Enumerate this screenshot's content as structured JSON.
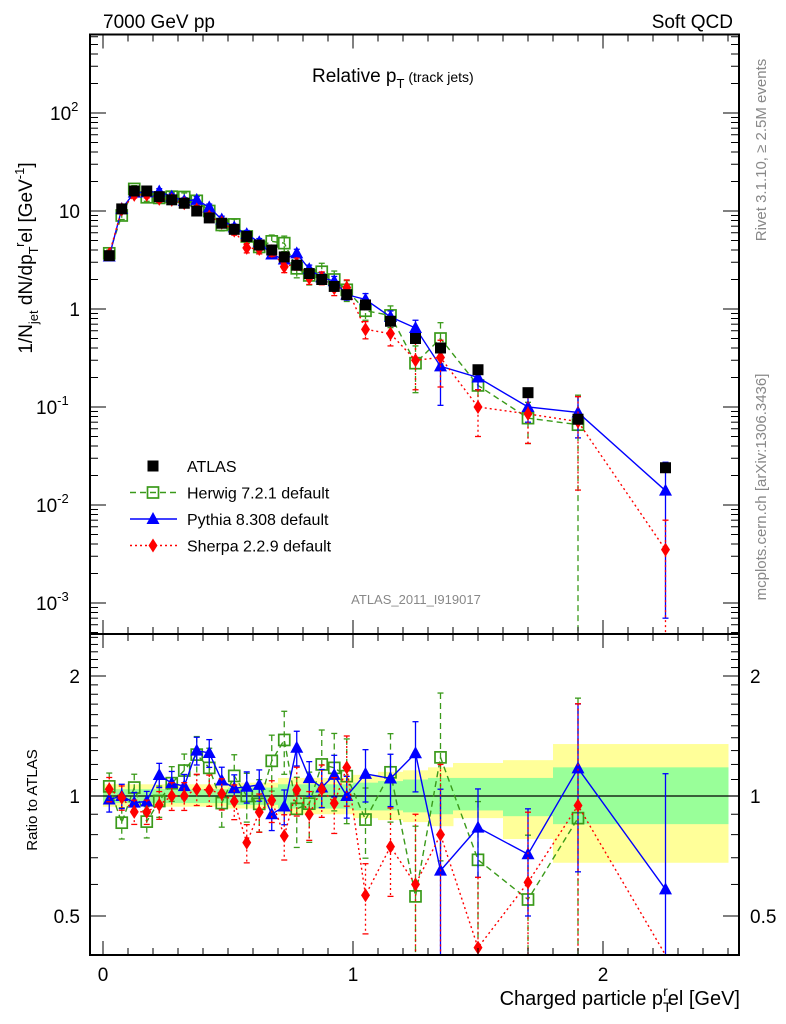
{
  "header": {
    "left": "7000 GeV pp",
    "right": "Soft QCD"
  },
  "side_text": {
    "rivet": "Rivet 3.1.10, ≥ 2.5M events",
    "mcplots": "mcplots.cern.ch [arXiv:1306.3436]"
  },
  "watermark": "ATLAS_2011_I919017",
  "colors": {
    "atlas": "#000000",
    "herwig": "#3a9a1a",
    "pythia": "#0000ff",
    "sherpa": "#ff0000",
    "band_total": "#ffff99",
    "band_stat": "#99ff99"
  },
  "chart_data": [
    {
      "type": "scatter",
      "title": {
        "main": "Relative p",
        "sub": "T",
        "small": " (track jets)"
      },
      "ylabel": {
        "a": "1/N",
        "a_sub": "jet",
        "b": " dN/dp",
        "b_sub": "T",
        "b_sup": "r",
        "c": "el [GeV",
        "c_sup": "-1",
        "d": "]"
      },
      "yscale": "log",
      "ylim": [
        0.00046,
        690
      ],
      "xlim": [
        -0.052,
        2.544
      ],
      "y_ticks": [
        {
          "value": 0.001,
          "base": "10",
          "exp": "-3"
        },
        {
          "value": 0.01,
          "base": "10",
          "exp": "-2"
        },
        {
          "value": 0.1,
          "base": "10",
          "exp": "-1"
        },
        {
          "value": 1,
          "base": "1",
          "exp": ""
        },
        {
          "value": 10,
          "base": "10",
          "exp": ""
        },
        {
          "value": 100,
          "base": "10",
          "exp": "2"
        }
      ],
      "legend_position": "lower-left",
      "bin_edges": [
        0,
        0.05,
        0.1,
        0.15,
        0.2,
        0.25,
        0.3,
        0.35,
        0.4,
        0.45,
        0.5,
        0.55,
        0.6,
        0.65,
        0.7,
        0.75,
        0.8,
        0.85,
        0.9,
        0.95,
        1.0,
        1.1,
        1.2,
        1.3,
        1.4,
        1.6,
        1.8,
        2.0,
        2.5
      ],
      "x": [
        0.025,
        0.075,
        0.125,
        0.175,
        0.225,
        0.275,
        0.325,
        0.375,
        0.425,
        0.475,
        0.525,
        0.575,
        0.625,
        0.675,
        0.725,
        0.775,
        0.825,
        0.875,
        0.925,
        0.975,
        1.05,
        1.15,
        1.25,
        1.35,
        1.5,
        1.7,
        1.9,
        2.25
      ],
      "series": [
        {
          "key": "atlas",
          "name": "ATLAS",
          "marker": "filled-square",
          "line": "none",
          "values": [
            3.5,
            10.5,
            16,
            16,
            14,
            13,
            12,
            10,
            8.5,
            7.5,
            6.5,
            5.5,
            4.5,
            4.0,
            3.4,
            2.8,
            2.3,
            2.0,
            1.7,
            1.4,
            1.1,
            0.75,
            0.5,
            0.4,
            0.24,
            0.14,
            0.075,
            0.024
          ]
        },
        {
          "key": "herwig",
          "name": "Herwig 7.2.1 default",
          "marker": "open-square",
          "line": "dashed",
          "values": [
            3.7,
            9.0,
            16.8,
            13.8,
            13.6,
            14.0,
            13.9,
            12.7,
            10.0,
            7.2,
            7.3,
            5.5,
            4.3,
            4.9,
            4.7,
            2.6,
            2.2,
            2.4,
            2.0,
            1.57,
            0.96,
            0.86,
            0.28,
            0.5,
            0.166,
            0.077,
            0.066,
            null
          ],
          "rel_err": [
            0.08,
            0.09,
            0.08,
            0.09,
            0.09,
            0.1,
            0.1,
            0.11,
            0.12,
            0.13,
            0.13,
            0.14,
            0.15,
            0.16,
            0.18,
            0.2,
            0.2,
            0.22,
            0.22,
            0.24,
            0.2,
            0.25,
            0.5,
            0.45,
            0.4,
            0.45,
            1.0,
            null
          ]
        },
        {
          "key": "pythia",
          "name": "Pythia 8.308 default",
          "marker": "triangle",
          "line": "solid",
          "values": [
            3.43,
            10.5,
            15.4,
            15.5,
            15.8,
            14.0,
            12.7,
            13.0,
            10.9,
            8.2,
            6.8,
            5.8,
            4.8,
            3.6,
            3.2,
            3.7,
            2.55,
            2.1,
            1.92,
            1.4,
            1.25,
            0.83,
            0.64,
            0.26,
            0.2,
            0.1,
            0.088,
            0.014
          ],
          "rel_err": [
            0.07,
            0.07,
            0.06,
            0.06,
            0.07,
            0.07,
            0.07,
            0.08,
            0.08,
            0.08,
            0.08,
            0.09,
            0.09,
            0.09,
            0.1,
            0.1,
            0.1,
            0.11,
            0.12,
            0.12,
            0.15,
            0.15,
            0.2,
            0.6,
            0.25,
            0.3,
            0.45,
            0.95
          ]
        },
        {
          "key": "sherpa",
          "name": "Sherpa 2.2.9 default",
          "marker": "diamond",
          "line": "dotted",
          "values": [
            3.64,
            10.4,
            14.6,
            14.6,
            13.3,
            13.0,
            12.0,
            10.4,
            8.8,
            7.6,
            6.3,
            4.2,
            4.1,
            3.9,
            2.7,
            2.9,
            2.07,
            2.08,
            1.63,
            1.65,
            0.62,
            0.56,
            0.3,
            0.32,
            0.1,
            0.085,
            0.071,
            0.0035
          ],
          "rel_err": [
            0.07,
            0.07,
            0.07,
            0.07,
            0.08,
            0.08,
            0.08,
            0.09,
            0.09,
            0.09,
            0.1,
            0.11,
            0.11,
            0.12,
            0.13,
            0.14,
            0.14,
            0.15,
            0.16,
            0.2,
            0.2,
            0.25,
            0.5,
            0.5,
            0.5,
            0.5,
            0.8,
            1.0
          ]
        }
      ]
    },
    {
      "type": "scatter",
      "ylabel": "Ratio to ATLAS",
      "xlabel": {
        "a": "Charged particle p",
        "sub": "T",
        "sup": "r",
        "b": "el [GeV]"
      },
      "yscale": "log",
      "ylim": [
        0.4,
        2.55
      ],
      "x_ticks": [
        {
          "value": 0,
          "label": "0"
        },
        {
          "value": 1,
          "label": "1"
        },
        {
          "value": 2,
          "label": "2"
        }
      ],
      "y_ticks": [
        {
          "value": 0.5,
          "label": "0.5"
        },
        {
          "value": 1,
          "label": "1"
        },
        {
          "value": 2,
          "label": "2"
        }
      ],
      "reference": 1,
      "band_stat": [
        [
          0.96,
          1.04
        ],
        [
          0.96,
          1.04
        ],
        [
          0.96,
          1.04
        ],
        [
          0.96,
          1.04
        ],
        [
          0.96,
          1.04
        ],
        [
          0.96,
          1.04
        ],
        [
          0.96,
          1.04
        ],
        [
          0.96,
          1.04
        ],
        [
          0.96,
          1.04
        ],
        [
          0.96,
          1.04
        ],
        [
          0.95,
          1.05
        ],
        [
          0.95,
          1.05
        ],
        [
          0.95,
          1.05
        ],
        [
          0.95,
          1.05
        ],
        [
          0.93,
          1.07
        ],
        [
          0.93,
          1.07
        ],
        [
          0.93,
          1.07
        ],
        [
          0.93,
          1.07
        ],
        [
          0.93,
          1.07
        ],
        [
          0.93,
          1.07
        ],
        [
          0.92,
          1.08
        ],
        [
          0.92,
          1.09
        ],
        [
          0.91,
          1.1
        ],
        [
          0.9,
          1.11
        ],
        [
          0.92,
          1.11
        ],
        [
          0.89,
          1.11
        ],
        [
          0.85,
          1.18
        ],
        [
          0.85,
          1.18
        ]
      ],
      "band_total": [
        [
          0.94,
          1.07
        ],
        [
          0.94,
          1.07
        ],
        [
          0.94,
          1.07
        ],
        [
          0.94,
          1.07
        ],
        [
          0.94,
          1.07
        ],
        [
          0.94,
          1.07
        ],
        [
          0.94,
          1.07
        ],
        [
          0.94,
          1.07
        ],
        [
          0.94,
          1.07
        ],
        [
          0.94,
          1.07
        ],
        [
          0.93,
          1.08
        ],
        [
          0.93,
          1.08
        ],
        [
          0.93,
          1.08
        ],
        [
          0.93,
          1.08
        ],
        [
          0.9,
          1.11
        ],
        [
          0.9,
          1.11
        ],
        [
          0.9,
          1.11
        ],
        [
          0.9,
          1.11
        ],
        [
          0.9,
          1.11
        ],
        [
          0.9,
          1.11
        ],
        [
          0.88,
          1.13
        ],
        [
          0.87,
          1.15
        ],
        [
          0.86,
          1.16
        ],
        [
          0.84,
          1.18
        ],
        [
          0.88,
          1.21
        ],
        [
          0.78,
          1.23
        ],
        [
          0.68,
          1.35
        ],
        [
          0.68,
          1.35
        ]
      ]
    }
  ]
}
